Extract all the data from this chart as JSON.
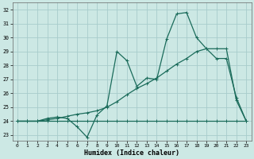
{
  "xlabel": "Humidex (Indice chaleur)",
  "bg_color": "#cce8e4",
  "grid_color": "#a8cccc",
  "line_color": "#1a6b5a",
  "xlim": [
    -0.5,
    23.5
  ],
  "ylim": [
    22.6,
    32.5
  ],
  "xticks": [
    0,
    1,
    2,
    3,
    4,
    5,
    6,
    7,
    8,
    9,
    10,
    11,
    12,
    13,
    14,
    15,
    16,
    17,
    18,
    19,
    20,
    21,
    22,
    23
  ],
  "yticks": [
    23,
    24,
    25,
    26,
    27,
    28,
    29,
    30,
    31,
    32
  ],
  "line1_x": [
    0,
    1,
    2,
    3,
    4,
    5,
    6,
    7,
    8,
    9,
    10,
    11,
    12,
    13,
    14,
    15,
    16,
    17,
    18,
    19,
    20,
    21,
    22,
    23
  ],
  "line1_y": [
    24,
    24,
    24,
    24,
    24,
    24,
    24,
    24,
    24,
    24,
    24,
    24,
    24,
    24,
    24,
    24,
    24,
    24,
    24,
    24,
    24,
    24,
    24,
    24
  ],
  "line2_x": [
    0,
    1,
    2,
    3,
    4,
    5,
    6,
    7,
    8,
    9,
    10,
    11,
    12,
    13,
    14,
    15,
    16,
    17,
    18,
    19,
    20,
    21,
    22,
    23
  ],
  "line2_y": [
    24,
    24,
    24,
    24.2,
    24.3,
    24.2,
    23.6,
    22.85,
    24.45,
    25.1,
    29.0,
    28.35,
    26.5,
    27.1,
    27.0,
    29.9,
    31.7,
    31.8,
    30.0,
    29.2,
    28.5,
    28.5,
    25.7,
    24.0
  ],
  "line3_x": [
    0,
    1,
    2,
    3,
    4,
    5,
    6,
    7,
    8,
    9,
    10,
    11,
    12,
    13,
    14,
    15,
    16,
    17,
    18,
    19,
    20,
    21,
    22,
    23
  ],
  "line3_y": [
    24.0,
    24.0,
    24.0,
    24.1,
    24.2,
    24.35,
    24.5,
    24.6,
    24.75,
    25.0,
    25.4,
    25.9,
    26.35,
    26.7,
    27.1,
    27.6,
    28.1,
    28.5,
    29.0,
    29.2,
    29.2,
    29.2,
    25.5,
    24.0
  ]
}
